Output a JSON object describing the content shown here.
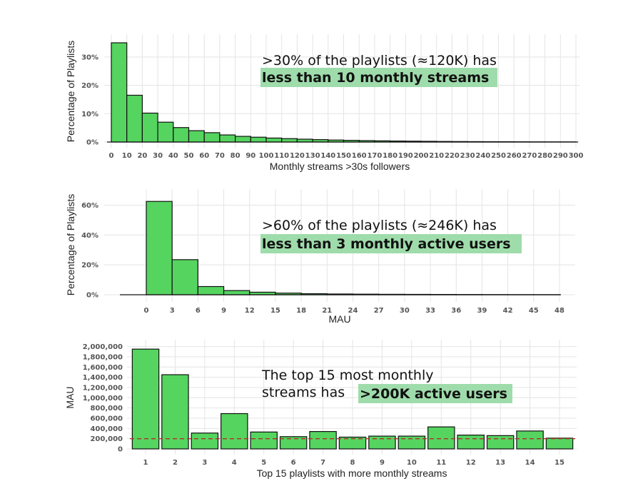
{
  "chart_data": [
    {
      "type": "bar",
      "xlabel": "Monthly streams >30s followers",
      "ylabel": "Percentage of Playlists",
      "ylim": [
        0,
        36
      ],
      "y_ticks": [
        "0%",
        "10%",
        "20%",
        "30%"
      ],
      "y_tick_values": [
        0,
        10,
        20,
        30
      ],
      "x_ticks": [
        "0",
        "10",
        "20",
        "30",
        "40",
        "50",
        "60",
        "70",
        "80",
        "90",
        "100",
        "110",
        "120",
        "130",
        "140",
        "150",
        "160",
        "170",
        "180",
        "190",
        "200",
        "210",
        "220",
        "230",
        "240",
        "250",
        "260",
        "270",
        "280",
        "290",
        "300"
      ],
      "x_tick_values": [
        0,
        10,
        20,
        30,
        40,
        50,
        60,
        70,
        80,
        90,
        100,
        110,
        120,
        130,
        140,
        150,
        160,
        170,
        180,
        190,
        200,
        210,
        220,
        230,
        240,
        250,
        260,
        270,
        280,
        290,
        300
      ],
      "bins_start": [
        0,
        10,
        20,
        30,
        40,
        50,
        60,
        70,
        80,
        90,
        100,
        110,
        120,
        130,
        140,
        150,
        160,
        170,
        180,
        190,
        200,
        210,
        220,
        230,
        240,
        250,
        260,
        270,
        280,
        290
      ],
      "bin_width": 10,
      "values": [
        35,
        16.5,
        10.2,
        7.0,
        5.1,
        4.0,
        3.3,
        2.5,
        2.0,
        1.7,
        1.4,
        1.2,
        1.0,
        0.85,
        0.7,
        0.6,
        0.5,
        0.42,
        0.35,
        0.3,
        0.25,
        0.2,
        0.17,
        0.14,
        0.12,
        0.1,
        0.08,
        0.06,
        0.05,
        0.04
      ],
      "grid": true,
      "annotation": {
        "line1": ">30% of the playlists (≈120K) has",
        "line2_bold": "less than 10 monthly streams"
      }
    },
    {
      "type": "bar",
      "xlabel": "MAU",
      "ylabel": "Percentage of Playlists",
      "ylim": [
        0,
        65
      ],
      "y_ticks": [
        "0%",
        "20%",
        "40%",
        "60%"
      ],
      "y_tick_values": [
        0,
        20,
        40,
        60
      ],
      "x_ticks": [
        "0",
        "3",
        "6",
        "9",
        "12",
        "15",
        "18",
        "21",
        "24",
        "27",
        "30",
        "33",
        "36",
        "39",
        "42",
        "45",
        "48"
      ],
      "x_tick_values": [
        0,
        3,
        6,
        9,
        12,
        15,
        18,
        21,
        24,
        27,
        30,
        33,
        36,
        39,
        42,
        45,
        48
      ],
      "bins_start": [
        -3,
        0,
        3,
        6,
        9,
        12,
        15,
        18,
        21,
        24,
        27,
        30,
        33,
        36,
        39,
        42,
        45
      ],
      "bin_width": 3,
      "values": [
        0,
        62.5,
        23.5,
        5.5,
        2.8,
        1.7,
        1.1,
        0.7,
        0.5,
        0.4,
        0.3,
        0.25,
        0.2,
        0.15,
        0.1,
        0.08,
        0.06
      ],
      "grid": true,
      "annotation": {
        "line1": ">60% of the playlists (≈246K) has",
        "line2_bold": "less than 3 monthly active users"
      }
    },
    {
      "type": "bar",
      "xlabel": "Top 15 playlists with more monthly streams",
      "ylabel": "MAU",
      "ylim": [
        0,
        2050000
      ],
      "y_ticks": [
        "0",
        "200,000",
        "400,000",
        "600,000",
        "800,000",
        "1,000,000",
        "1,200,000",
        "1,400,000",
        "1,600,000",
        "1,800,000",
        "2,000,000"
      ],
      "y_tick_values": [
        0,
        200000,
        400000,
        600000,
        800000,
        1000000,
        1200000,
        1400000,
        1600000,
        1800000,
        2000000
      ],
      "categories": [
        "1",
        "2",
        "3",
        "4",
        "5",
        "6",
        "7",
        "8",
        "9",
        "10",
        "11",
        "12",
        "13",
        "14",
        "15"
      ],
      "values": [
        1950000,
        1450000,
        310000,
        690000,
        330000,
        240000,
        340000,
        230000,
        250000,
        250000,
        430000,
        270000,
        260000,
        350000,
        210000
      ],
      "reference_line": 200000,
      "grid": true,
      "annotation": {
        "line1": "The top 15 most monthly",
        "line2_plain": "streams has ",
        "line2_bold": ">200K active users"
      }
    }
  ]
}
